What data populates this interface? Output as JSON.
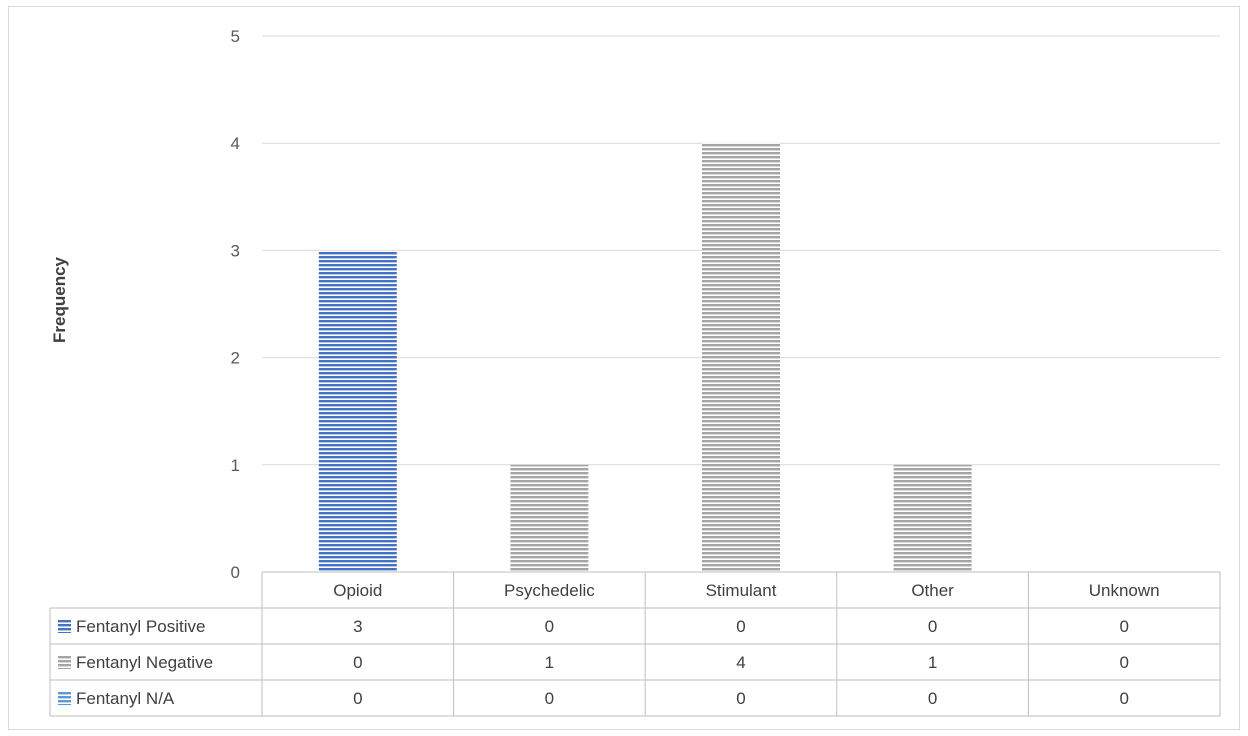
{
  "chart_data": {
    "type": "bar",
    "ylabel": "Frequency",
    "xlabel": "",
    "title": "",
    "ylim": [
      0,
      5
    ],
    "yticks": [
      0,
      1,
      2,
      3,
      4,
      5
    ],
    "grid": true,
    "legend": "data-table",
    "categories": [
      "Opioid",
      "Psychedelic",
      "Stimulant",
      "Other",
      "Unknown"
    ],
    "series": [
      {
        "name": "Fentanyl Positive",
        "values": [
          3,
          0,
          0,
          0,
          0
        ],
        "color": "#4472c4",
        "pattern": "horizontal-stripes"
      },
      {
        "name": "Fentanyl Negative",
        "values": [
          0,
          1,
          4,
          1,
          0
        ],
        "color": "#a5a5a5",
        "pattern": "horizontal-stripes"
      },
      {
        "name": "Fentanyl N/A",
        "values": [
          0,
          0,
          0,
          0,
          0
        ],
        "color": "#5b9bd5",
        "pattern": "horizontal-stripes"
      }
    ]
  }
}
